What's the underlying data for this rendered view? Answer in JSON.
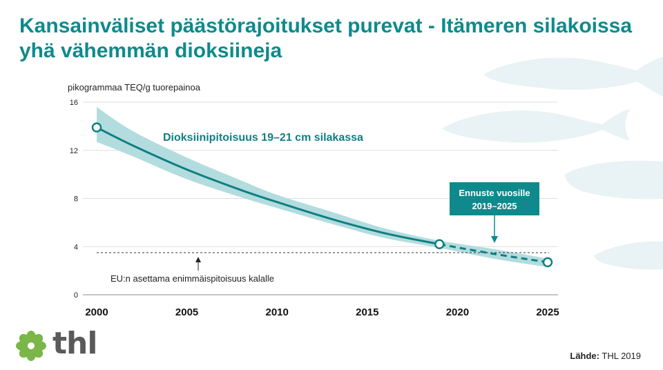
{
  "title": {
    "line1": "Kansainväliset päästörajoitukset purevat - Itämeren silakoissa",
    "line2": "yhä vähemmän dioksiineja"
  },
  "chart_data": {
    "type": "line",
    "ylabel": "pikogrammaa TEQ/g tuorepainoa",
    "xlabel": "",
    "x_ticks": [
      2000,
      2005,
      2010,
      2015,
      2020,
      2025
    ],
    "y_ticks": [
      0,
      4,
      8,
      12,
      16
    ],
    "xlim": [
      2000,
      2025
    ],
    "ylim": [
      0,
      16
    ],
    "grid": "horizontal",
    "series": [
      {
        "name": "Dioksiinipitoisuus  19–21 cm silakassa",
        "style": "solid",
        "color": "#0e7f82",
        "x": [
          2000,
          2002,
          2005,
          2008,
          2010,
          2013,
          2016,
          2019
        ],
        "y": [
          13.9,
          12.4,
          10.4,
          8.7,
          7.7,
          6.3,
          5.1,
          4.2
        ],
        "band_low": [
          12.7,
          11.5,
          9.6,
          8.1,
          7.2,
          5.9,
          4.7,
          3.9
        ],
        "band_high": [
          15.6,
          13.6,
          11.4,
          9.5,
          8.3,
          6.9,
          5.5,
          4.5
        ]
      },
      {
        "name": "Ennuste vuosille 2019–2025",
        "style": "dashed",
        "color": "#0e7f82",
        "x": [
          2019,
          2022,
          2025
        ],
        "y": [
          4.2,
          3.4,
          2.7
        ],
        "band_low": [
          3.9,
          3.0,
          2.3
        ],
        "band_high": [
          4.5,
          3.8,
          3.0
        ]
      }
    ],
    "highlight_points": [
      {
        "x": 2000,
        "y": 13.9
      },
      {
        "x": 2019,
        "y": 4.2
      },
      {
        "x": 2025,
        "y": 2.7
      }
    ],
    "reference_line": {
      "y": 3.5,
      "label": "EU:n asettama enimmäispitoisuus kalalle"
    },
    "annotations": {
      "series_label": "Dioksiinipitoisuus  19–21 cm silakassa",
      "forecast_box_line1": "Ennuste vuosille",
      "forecast_box_line2": "2019–2025"
    },
    "colors": {
      "line": "#0e7f82",
      "band": "#b3dcde",
      "forecast_box": "#0e8a8c",
      "title": "#0e8a8c",
      "fish": "#e9f2f4"
    }
  },
  "logo": {
    "text": "thl",
    "icon": "flower-logo-icon"
  },
  "source": {
    "label": "Lähde:",
    "value": "THL 2019"
  }
}
